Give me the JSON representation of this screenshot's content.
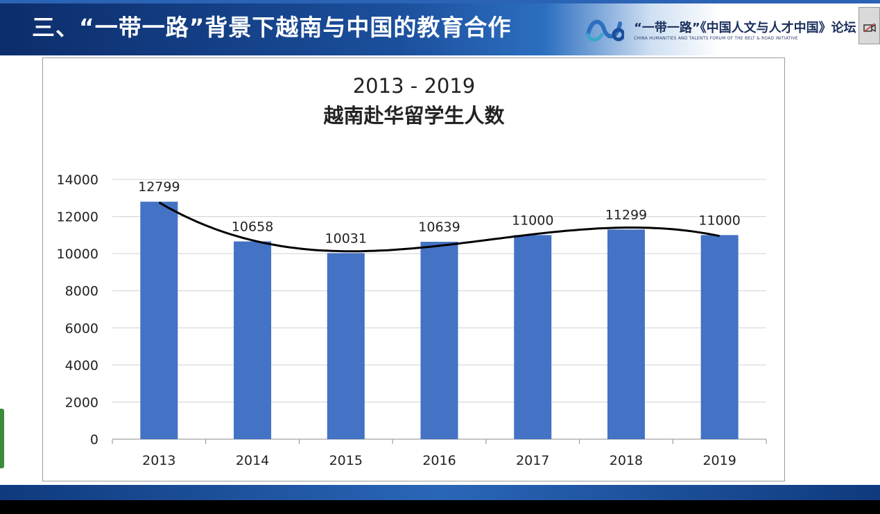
{
  "slide": {
    "title": "三、“一带一路”背景下越南与中国的教育合作",
    "forum_name": "“一带一路”《中国人文与人才中国》论坛",
    "forum_subtitle": "CHINA HUMANITIES AND TALENTS FORUM OF THE BELT & ROAD INITIATIVE"
  },
  "colors": {
    "bar": "#4472C4",
    "trendline": "#000000",
    "banner_dark": "#0c2d6b",
    "accent_blue": "#2b63b5"
  },
  "icons": [
    "forum-logo-icon",
    "camera-off-icon"
  ],
  "chart_data": {
    "type": "bar",
    "title": "2013 - 2019",
    "subtitle": "越南赴华留学生人数",
    "xlabel": "",
    "ylabel": "",
    "categories": [
      "2013",
      "2014",
      "2015",
      "2016",
      "2017",
      "2018",
      "2019"
    ],
    "series": [
      {
        "values": [
          12799,
          10658,
          10031,
          10639,
          11000,
          11299,
          11000
        ]
      }
    ],
    "data_labels": [
      "12799",
      "10658",
      "10031",
      "10639",
      "11000",
      "11299",
      "11000"
    ],
    "ylim": [
      0,
      14000
    ],
    "yticks": [
      "0",
      "2000",
      "4000",
      "6000",
      "8000",
      "10000",
      "12000",
      "14000"
    ],
    "grid": true,
    "legend": "none",
    "trendline": "polynomial"
  }
}
